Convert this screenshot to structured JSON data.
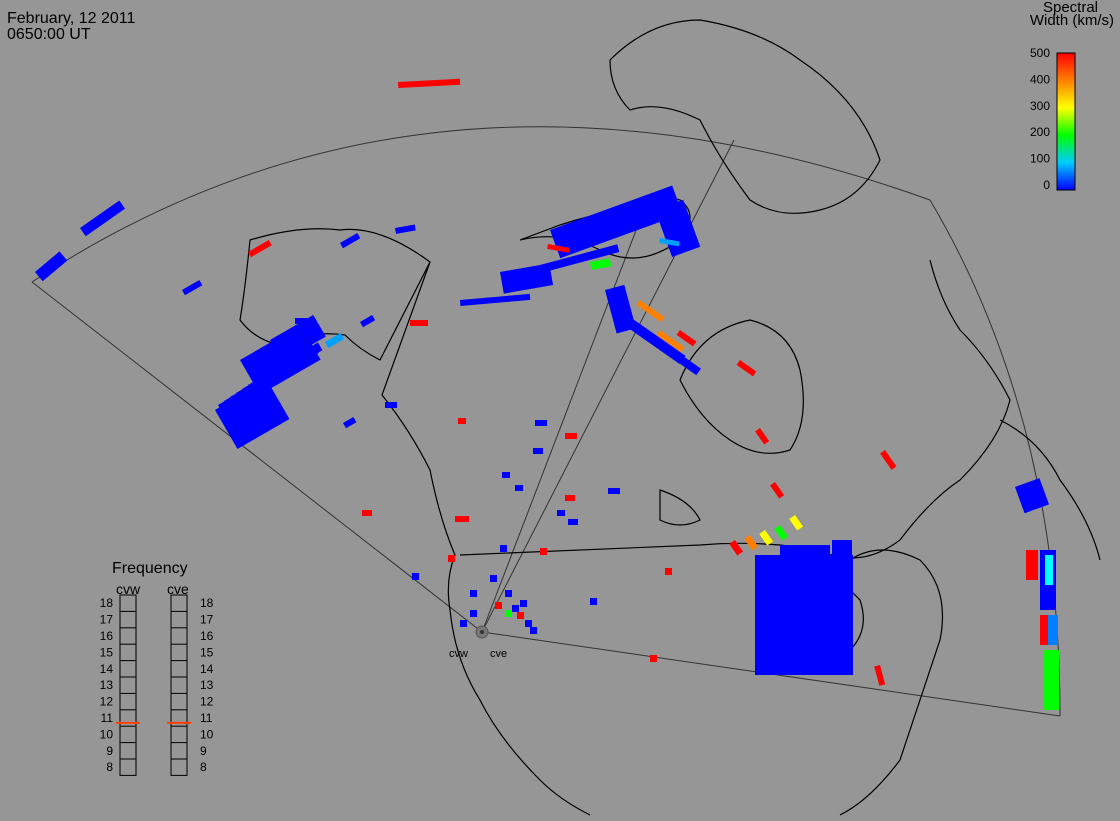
{
  "header": {
    "date": "February, 12 2011",
    "time": "0650:00 UT"
  },
  "colorbar": {
    "title_line1": "Spectral",
    "title_line2": "Width (km/s)",
    "ticks": [
      "500",
      "400",
      "300",
      "200",
      "100",
      "0"
    ],
    "range": [
      0,
      500
    ],
    "colors": [
      "#0000ff",
      "#00ffff",
      "#00ff00",
      "#ffff00",
      "#ff8000",
      "#ff0000"
    ]
  },
  "radars": {
    "west_label": "cvw",
    "east_label": "cve"
  },
  "frequency_panel": {
    "title": "Frequency",
    "left_label": "cvw",
    "right_label": "cve",
    "scale": [
      "18",
      "17",
      "16",
      "15",
      "14",
      "13",
      "12",
      "11",
      "10",
      "9",
      "8"
    ],
    "cvw_mhz": 10.7,
    "cve_mhz": 10.7,
    "marker_color": "#ff4000"
  },
  "colors": {
    "background": "#969696",
    "scatter_primary": "#0000ff",
    "scatter_secondary": "#ff0000",
    "map_lines": "#000000"
  }
}
